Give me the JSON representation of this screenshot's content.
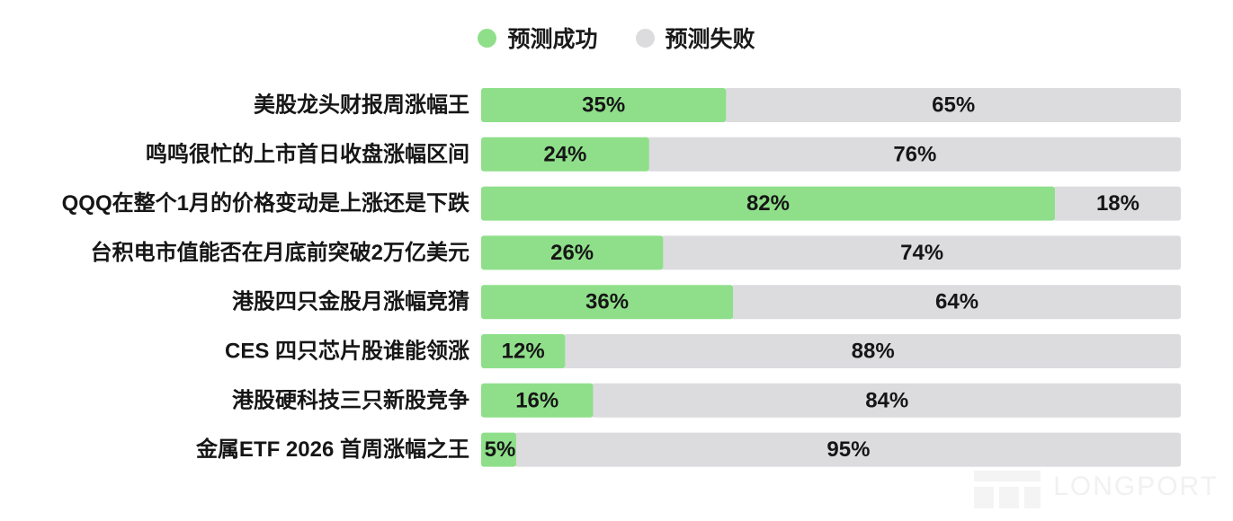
{
  "legend": {
    "success_label": "预测成功",
    "fail_label": "预测失败"
  },
  "colors": {
    "success": "#8fdf8a",
    "fail": "#dcdcdf",
    "text": "#161616"
  },
  "chart_data": {
    "type": "bar",
    "orientation": "horizontal",
    "stacked": true,
    "percent_stacked": true,
    "categories": [
      "美股龙头财报周涨幅王",
      "鸣鸣很忙的上市首日收盘涨幅区间",
      "QQQ在整个1月的价格变动是上涨还是下跌",
      "台积电市值能否在月底前突破2万亿美元",
      "港股四只金股月涨幅竞猜",
      "CES 四只芯片股谁能领涨",
      "港股硬科技三只新股竞争",
      "金属ETF 2026 首周涨幅之王"
    ],
    "series": [
      {
        "name": "预测成功",
        "values": [
          35,
          24,
          82,
          26,
          36,
          12,
          16,
          5
        ]
      },
      {
        "name": "预测失败",
        "values": [
          65,
          76,
          18,
          74,
          64,
          88,
          84,
          95
        ]
      }
    ],
    "value_labels": {
      "success": [
        "35%",
        "24%",
        "82%",
        "26%",
        "36%",
        "12%",
        "16%",
        "5%"
      ],
      "fail": [
        "65%",
        "76%",
        "18%",
        "74%",
        "64%",
        "88%",
        "84%",
        "95%"
      ]
    },
    "xlim": [
      0,
      100
    ],
    "legend_position": "top-center",
    "grid": false
  },
  "watermark": {
    "text": "LONGPORT"
  }
}
